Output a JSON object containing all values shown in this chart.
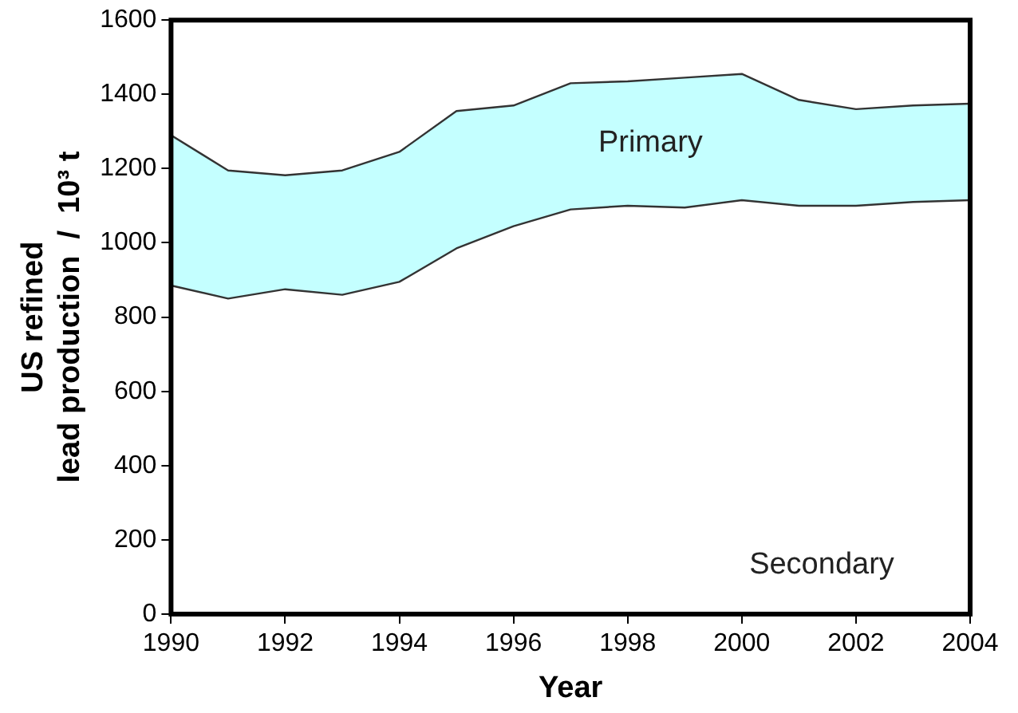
{
  "chart_data": {
    "type": "area",
    "stacked": true,
    "xlabel": "Year",
    "ylabel": "US refined\nlead production  /  10³ t",
    "x": [
      1990,
      1991,
      1992,
      1993,
      1994,
      1995,
      1996,
      1997,
      1998,
      1999,
      2000,
      2001,
      2002,
      2003,
      2004
    ],
    "series": [
      {
        "name": "Secondary",
        "color": "#ffffff",
        "values": [
          885,
          850,
          875,
          860,
          895,
          985,
          1045,
          1090,
          1100,
          1095,
          1115,
          1100,
          1100,
          1110,
          1115
        ]
      },
      {
        "name": "Primary",
        "color": "#c4ffff",
        "values": [
          405,
          345,
          307,
          335,
          350,
          370,
          325,
          340,
          335,
          350,
          340,
          285,
          260,
          260,
          260
        ]
      }
    ],
    "xlim": [
      1990,
      2004
    ],
    "xticks": [
      1990,
      1992,
      1994,
      1996,
      1998,
      2000,
      2002,
      2004
    ],
    "ylim": [
      0,
      1600
    ],
    "yticks": [
      0,
      200,
      400,
      600,
      800,
      1000,
      1200,
      1400,
      1600
    ],
    "grid": false,
    "legend": false
  }
}
